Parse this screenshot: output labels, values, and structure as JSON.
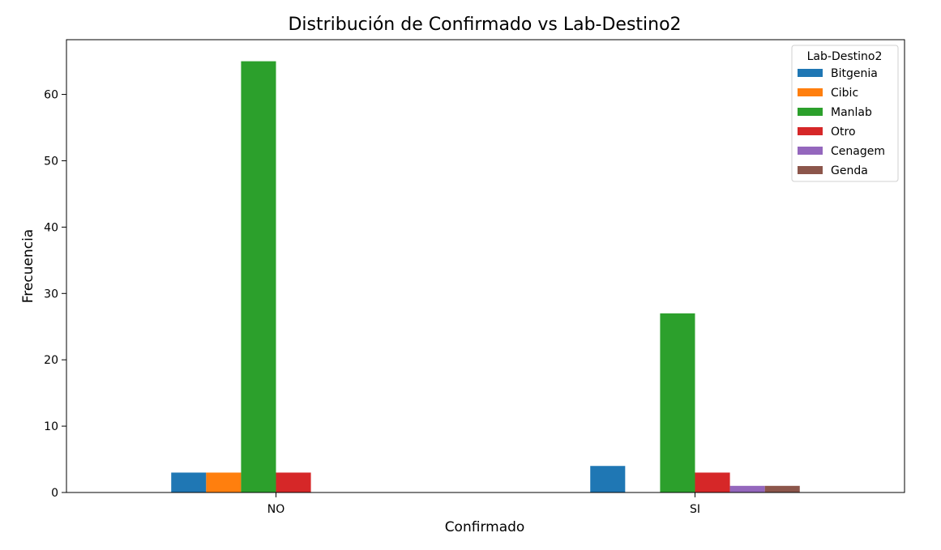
{
  "chart_data": {
    "type": "bar",
    "title": "Distribución de Confirmado vs Lab-Destino2",
    "xlabel": "Confirmado",
    "ylabel": "Frecuencia",
    "categories": [
      "NO",
      "SI"
    ],
    "ylim": [
      0,
      68.25
    ],
    "yticks": [
      0,
      10,
      20,
      30,
      40,
      50,
      60
    ],
    "grid": false,
    "legend": {
      "title": "Lab-Destino2",
      "placement": "top-right"
    },
    "series": [
      {
        "name": "Bitgenia",
        "color": "#1f77b4",
        "values": [
          3,
          4
        ]
      },
      {
        "name": "Cibic",
        "color": "#ff7f0e",
        "values": [
          3,
          0
        ]
      },
      {
        "name": "Manlab",
        "color": "#2ca02c",
        "values": [
          65,
          27
        ]
      },
      {
        "name": "Otro",
        "color": "#d62728",
        "values": [
          3,
          3
        ]
      },
      {
        "name": "Cenagem",
        "color": "#9467bd",
        "values": [
          0,
          1
        ]
      },
      {
        "name": "Genda",
        "color": "#8c564b",
        "values": [
          0,
          1
        ]
      }
    ]
  }
}
